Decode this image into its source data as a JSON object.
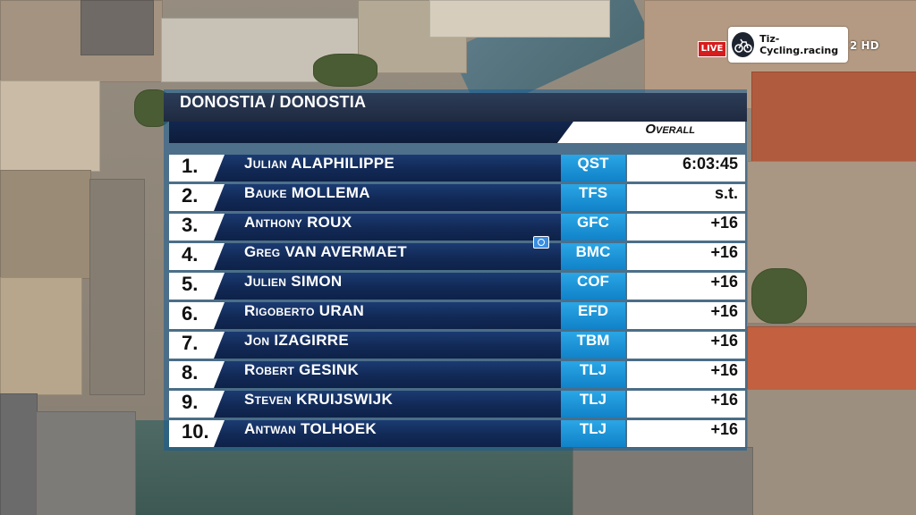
{
  "broadcast": {
    "live_badge": "LIVE",
    "watermark": "Tiz-Cycling.racing",
    "channel": "2 HD"
  },
  "standings": {
    "title": "DONOSTIA / DONOSTIA",
    "classification": "Overall",
    "rows": [
      {
        "pos": "1.",
        "rider": "Julian ALAPHILIPPE",
        "team": "QST",
        "time": "6:03:45"
      },
      {
        "pos": "2.",
        "rider": "Bauke MOLLEMA",
        "team": "TFS",
        "time": "s.t."
      },
      {
        "pos": "3.",
        "rider": "Anthony ROUX",
        "team": "GFC",
        "time": "+16"
      },
      {
        "pos": "4.",
        "rider": "Greg VAN AVERMAET",
        "team": "BMC",
        "time": "+16"
      },
      {
        "pos": "5.",
        "rider": "Julien SIMON",
        "team": "COF",
        "time": "+16"
      },
      {
        "pos": "6.",
        "rider": "Rigoberto URAN",
        "team": "EFD",
        "time": "+16"
      },
      {
        "pos": "7.",
        "rider": "Jon IZAGIRRE",
        "team": "TBM",
        "time": "+16"
      },
      {
        "pos": "8.",
        "rider": "Robert GESINK",
        "team": "TLJ",
        "time": "+16"
      },
      {
        "pos": "9.",
        "rider": "Steven KRUIJSWIJK",
        "team": "TLJ",
        "time": "+16"
      },
      {
        "pos": "10.",
        "rider": "Antwan TOLHOEK",
        "team": "TLJ",
        "time": "+16"
      }
    ]
  },
  "colors": {
    "team_cell": "#1a93d8",
    "name_cell": "#122a58",
    "live": "#d61c1c"
  },
  "icons": [
    "camera-icon",
    "tiz-logo-icon"
  ]
}
